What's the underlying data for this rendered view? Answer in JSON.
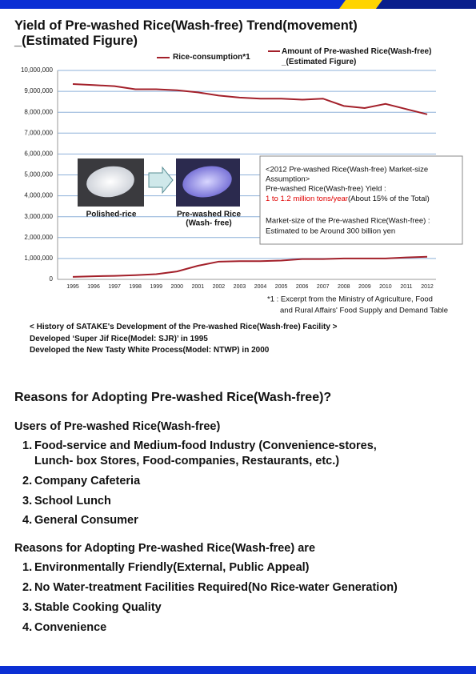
{
  "header": {
    "title_lines": [
      "Yield of Pre-washed Rice(Wash-free) Trend(movement)",
      "_(Estimated Figure)"
    ]
  },
  "chart_data": {
    "type": "line",
    "categories": [
      "1995",
      "1996",
      "1997",
      "1998",
      "1999",
      "2000",
      "2001",
      "2002",
      "2003",
      "2004",
      "2005",
      "2006",
      "2007",
      "2008",
      "2009",
      "2010",
      "2011",
      "2012"
    ],
    "series": [
      {
        "name": "Rice-consumption*1",
        "color": "#a3202a",
        "values": [
          9350000,
          9300000,
          9250000,
          9100000,
          9100000,
          9050000,
          8950000,
          8800000,
          8700000,
          8650000,
          8650000,
          8600000,
          8650000,
          8300000,
          8200000,
          8400000,
          8150000,
          7900000
        ]
      },
      {
        "name": "Amount of Pre-washed Rice(Wash-free) _(Estimated Figure)",
        "color": "#a3202a",
        "values": [
          120000,
          150000,
          170000,
          200000,
          250000,
          380000,
          650000,
          850000,
          870000,
          870000,
          900000,
          970000,
          970000,
          1000000,
          1000000,
          1000000,
          1050000,
          1080000
        ]
      }
    ],
    "ylim": [
      0,
      10000000
    ],
    "yticks": [
      0,
      {
        "value": 1000000,
        "label": "1,000,000"
      },
      {
        "value": 2000000,
        "label": "2,000,000"
      },
      {
        "value": 3000000,
        "label": "3,000,000"
      },
      {
        "value": 4000000,
        "label": "4,000,000"
      },
      {
        "value": 5000000,
        "label": "5,000,000"
      },
      {
        "value": 6000000,
        "label": "6,000,000"
      },
      {
        "value": 7000000,
        "label": "7,000,000"
      },
      {
        "value": 8000000,
        "label": "8,000,000"
      },
      {
        "value": 9000000,
        "label": "9,000,000"
      },
      {
        "value": 10000000,
        "label": "10,000,000"
      }
    ],
    "grid": true,
    "grid_color": "#8eb1d9"
  },
  "images": [
    {
      "caption_lines": [
        "Polished-rice"
      ]
    },
    {
      "caption_lines": [
        "Pre-washed Rice",
        "(Wash- free)"
      ]
    }
  ],
  "annotation": {
    "lines": [
      "<2012 Pre-washed Rice(Wash-free) Market-size",
      "Assumption>",
      "Pre-washed Rice(Wash-free) Yield :"
    ],
    "highlight": "1 to 1.2 million tons/year",
    "highlight_rest": "(About 15% of the Total)",
    "lines2": [
      "Market-size of the Pre-washed Rice(Wash-free) :",
      "Estimated to be Around 300 billion yen"
    ]
  },
  "footnote": [
    "*1 : Excerpt from the Ministry of Agriculture, Food",
    "and Rural Affairs' Food Supply and Demand Table"
  ],
  "history": [
    "< History of SATAKE's Development of the Pre-washed Rice(Wash-free) Facility >",
    "Developed ‘Super Jif Rice(Model: SJR)’ in 1995",
    "Developed the New Tasty White Process(Model: NTWP) in 2000"
  ],
  "reasons": {
    "heading": "Reasons for Adopting Pre-washed Rice(Wash-free)?",
    "groups": [
      {
        "title": "Users of Pre-washed Rice(Wash-free)",
        "items": [
          {
            "number": "1.",
            "lines": [
              "Food-service and Medium-food Industry (Convenience-stores,",
              "Lunch- box Stores, Food-companies, Restaurants, etc.)"
            ]
          },
          {
            "number": "2.",
            "lines": [
              "Company Cafeteria"
            ]
          },
          {
            "number": "3.",
            "lines": [
              "School Lunch"
            ]
          },
          {
            "number": "4.",
            "lines": [
              "General Consumer"
            ]
          }
        ]
      },
      {
        "title": "Reasons for Adopting Pre-washed Rice(Wash-free) are",
        "items": [
          {
            "number": "1.",
            "lines": [
              "Environmentally Friendly(External, Public Appeal)"
            ]
          },
          {
            "number": "2.",
            "lines": [
              "No Water-treatment Facilities Required(No Rice-water Generation)"
            ]
          },
          {
            "number": "3.",
            "lines": [
              "Stable Cooking Quality"
            ]
          },
          {
            "number": "4.",
            "lines": [
              "Convenience"
            ]
          }
        ]
      }
    ]
  }
}
